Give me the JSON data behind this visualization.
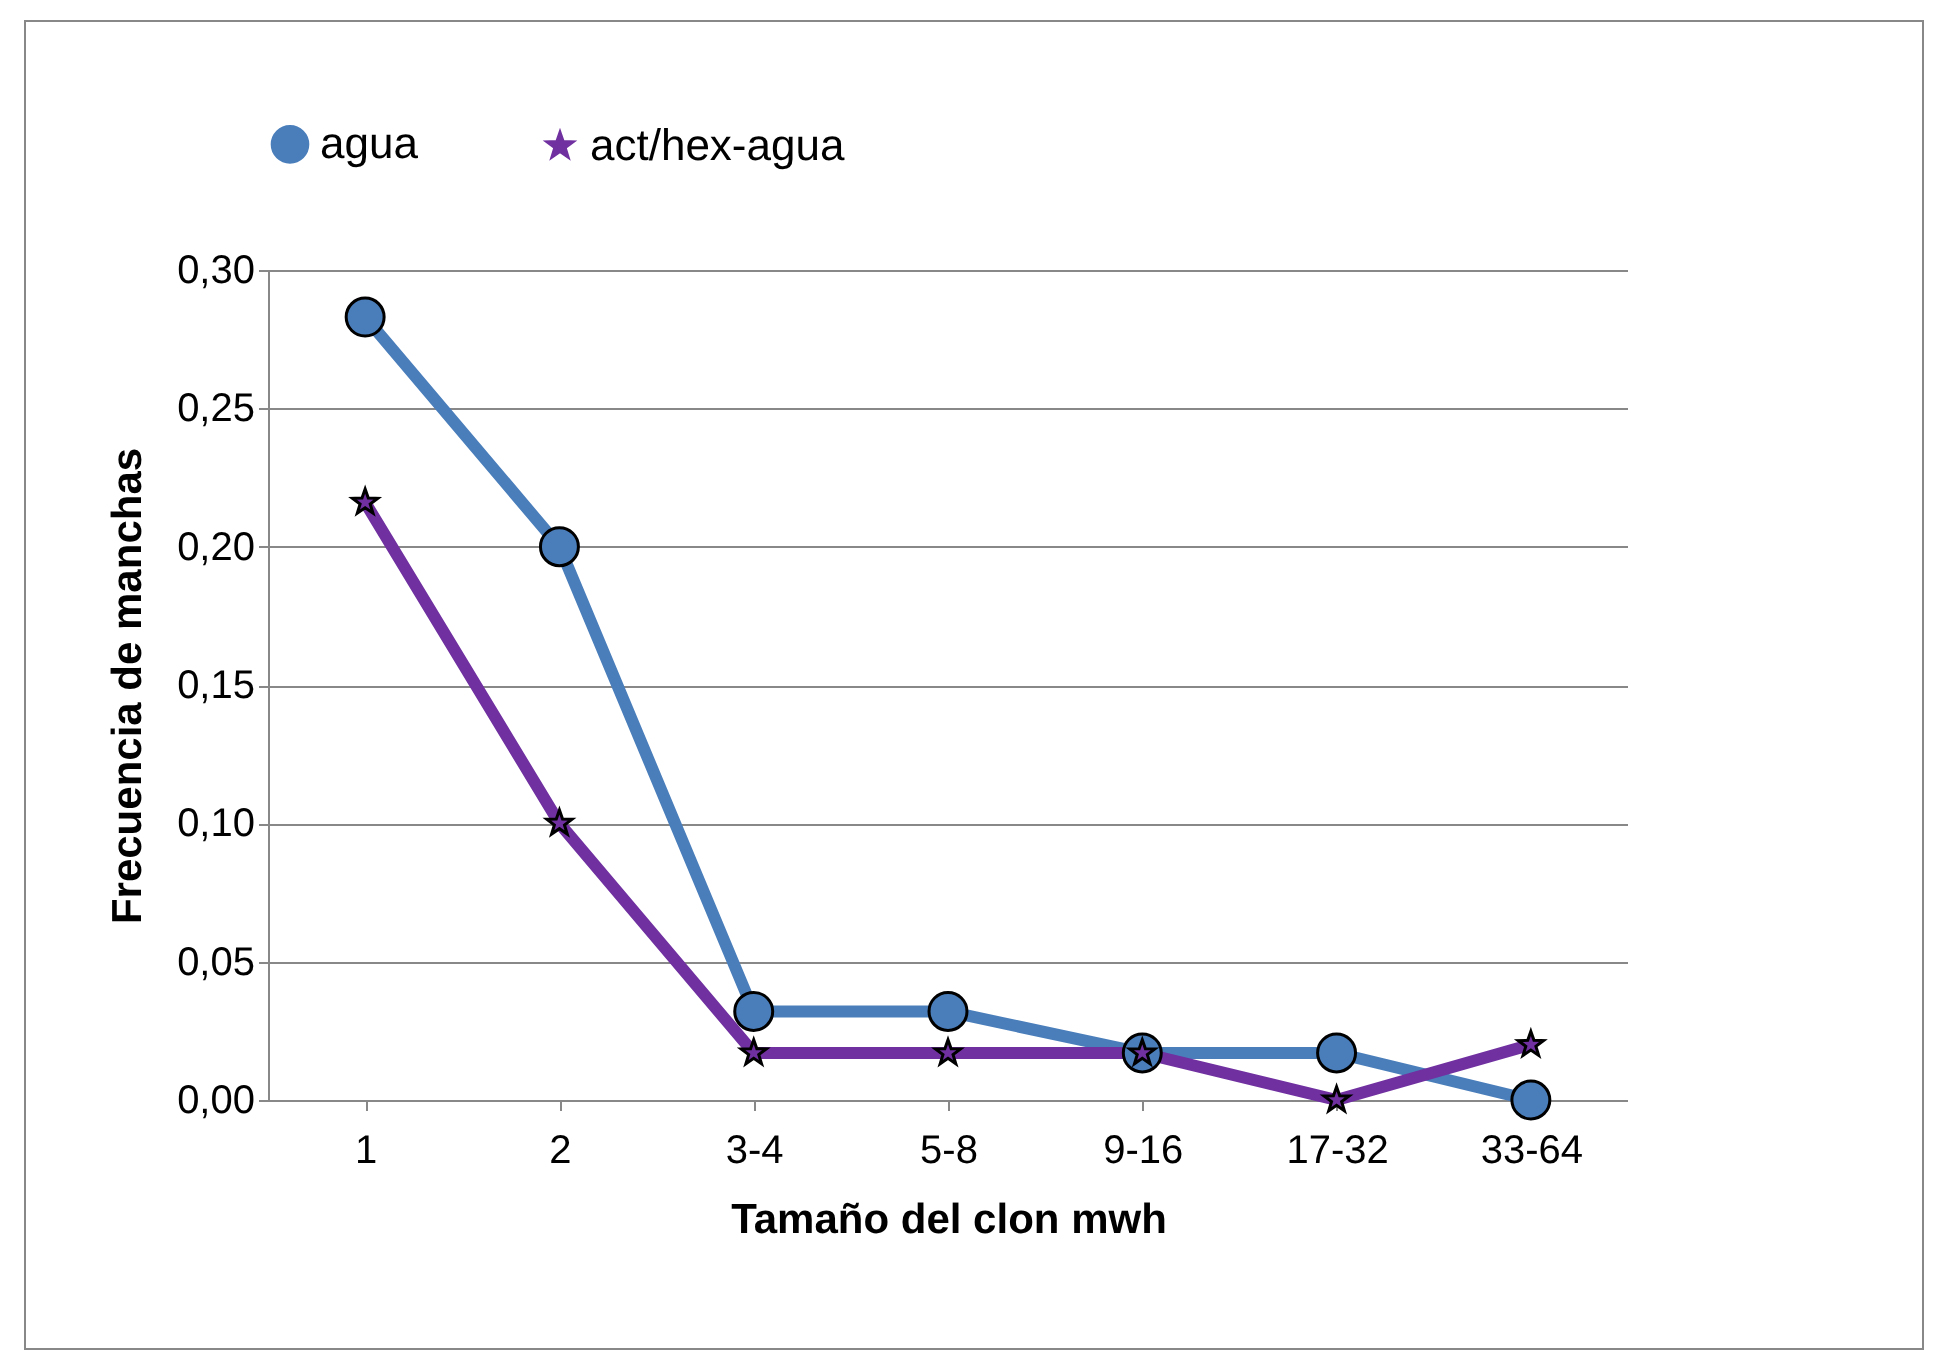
{
  "chart_data": {
    "type": "line",
    "xlabel": "Tamaño del clon mwh",
    "ylabel": "Frecuencia de manchas",
    "categories": [
      "1",
      "2",
      "3-4",
      "5-8",
      "9-16",
      "17-32",
      "33-64"
    ],
    "series": [
      {
        "name": "agua",
        "color": "#4a7ebb",
        "marker": "circle",
        "values": [
          0.283,
          0.2,
          0.032,
          0.032,
          0.017,
          0.017,
          0
        ]
      },
      {
        "name": "act/hex-agua",
        "color": "#7030a0",
        "marker": "star",
        "values": [
          0.216,
          0.1,
          0.017,
          0.017,
          0.017,
          0,
          0.02
        ]
      }
    ],
    "ylim": [
      0,
      0.3
    ],
    "yticks": [
      {
        "value": 0,
        "label": "0,00"
      },
      {
        "value": 0.05,
        "label": "0,05"
      },
      {
        "value": 0.1,
        "label": "0,10"
      },
      {
        "value": 0.15,
        "label": "0,15"
      },
      {
        "value": 0.2,
        "label": "0,20"
      },
      {
        "value": 0.25,
        "label": "0,25"
      },
      {
        "value": 0.3,
        "label": "0,30"
      }
    ],
    "grid": "y",
    "legend": "top"
  }
}
